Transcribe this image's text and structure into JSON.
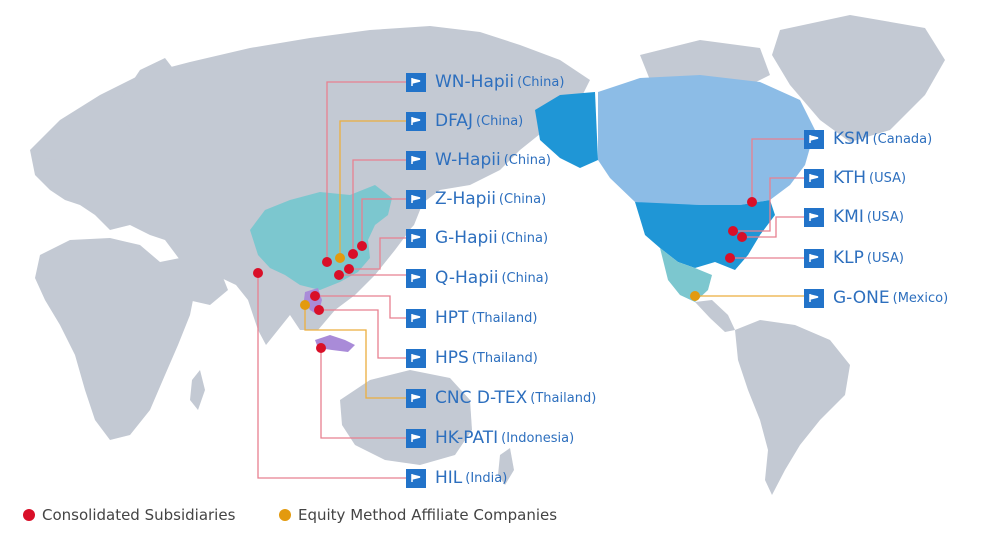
{
  "colors": {
    "land": "#c3c9d3",
    "china": "#7cc7cf",
    "alaska_us": "#1f96d6",
    "canada": "#8cbce6",
    "mexico": "#7cc7cf",
    "consolidated": "#d90f28",
    "equity": "#e39a0e",
    "connector_red": "#e88090",
    "connector_orange": "#ecae3e",
    "label_blue": "#2d6fbe",
    "flag_blue": "#2273c9"
  },
  "locations": [
    {
      "name": "WN-Hapii",
      "country": "(China)",
      "type": "consolidated"
    },
    {
      "name": "DFAJ",
      "country": "(China)",
      "type": "equity"
    },
    {
      "name": "W-Hapii",
      "country": "(China)",
      "type": "consolidated"
    },
    {
      "name": "Z-Hapii",
      "country": "(China)",
      "type": "consolidated"
    },
    {
      "name": "G-Hapii",
      "country": "(China)",
      "type": "consolidated"
    },
    {
      "name": "Q-Hapii",
      "country": "(China)",
      "type": "consolidated"
    },
    {
      "name": "HPT",
      "country": "(Thailand)",
      "type": "consolidated"
    },
    {
      "name": "HPS",
      "country": "(Thailand)",
      "type": "consolidated"
    },
    {
      "name": "CNC D-TEX",
      "country": "(Thailand)",
      "type": "equity"
    },
    {
      "name": "HK-PATI",
      "country": "(Indonesia)",
      "type": "consolidated"
    },
    {
      "name": "HIL",
      "country": "(India)",
      "type": "consolidated"
    },
    {
      "name": "KSM",
      "country": "(Canada)",
      "type": "consolidated"
    },
    {
      "name": "KTH",
      "country": "(USA)",
      "type": "consolidated"
    },
    {
      "name": "KMI",
      "country": "(USA)",
      "type": "consolidated"
    },
    {
      "name": "KLP",
      "country": "(USA)",
      "type": "consolidated"
    },
    {
      "name": "G-ONE",
      "country": "(Mexico)",
      "type": "equity"
    }
  ],
  "legend": {
    "consolidated": "Consolidated Subsidiaries",
    "equity": "Equity Method Affiliate Companies"
  }
}
